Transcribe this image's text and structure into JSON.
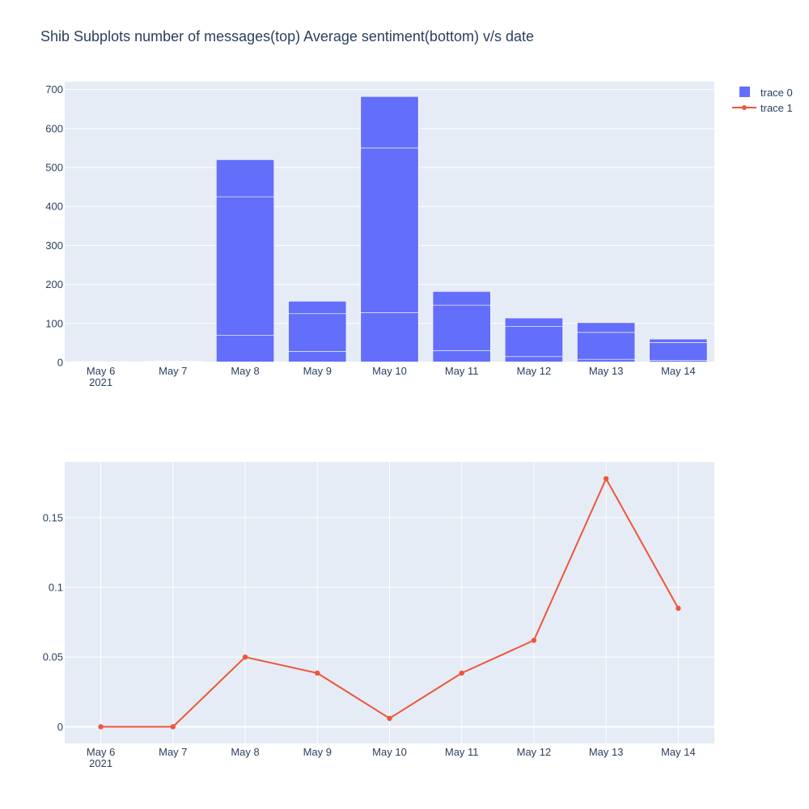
{
  "chart_data": {
    "type": "subplots",
    "title": "Shib Subplots number of messages(top) Average sentiment(bottom) v/s date",
    "year_label": "2021",
    "legend": [
      {
        "name": "trace 0",
        "symbol": "square",
        "color": "#636efa"
      },
      {
        "name": "trace 1",
        "symbol": "line-marker",
        "color": "#ef553b"
      }
    ],
    "legend_position": "top-right",
    "colors": {
      "plot_bg": "#e5ecf6",
      "grid": "#ffffff",
      "bar": "#636efa",
      "line": "#ef553b",
      "text": "#2a3f5f"
    },
    "subplots": [
      {
        "name": "number of messages",
        "type": "bar",
        "series_name": "trace 0",
        "categories": [
          "May 6",
          "May 7",
          "May 8",
          "May 9",
          "May 10",
          "May 11",
          "May 12",
          "May 13",
          "May 14"
        ],
        "stacked_segments": [
          [
            1,
            1
          ],
          [
            2,
            1
          ],
          [
            70,
            355,
            95
          ],
          [
            28,
            97,
            32
          ],
          [
            128,
            422,
            132
          ],
          [
            30,
            117,
            35
          ],
          [
            15,
            77,
            22
          ],
          [
            8,
            69,
            25
          ],
          [
            5,
            46,
            9
          ]
        ],
        "totals": [
          2,
          3,
          520,
          157,
          682,
          182,
          114,
          102,
          60
        ],
        "ylim": [
          0,
          720
        ],
        "yticks": [
          0,
          100,
          200,
          300,
          400,
          500,
          600,
          700
        ],
        "grid": true
      },
      {
        "name": "average sentiment",
        "type": "line",
        "series_name": "trace 1",
        "categories": [
          "May 6",
          "May 7",
          "May 8",
          "May 9",
          "May 10",
          "May 11",
          "May 12",
          "May 13",
          "May 14"
        ],
        "values": [
          0,
          0,
          0.05,
          0.0385,
          0.006,
          0.0385,
          0.062,
          0.178,
          0.085
        ],
        "ylim": [
          -0.012,
          0.19
        ],
        "yticks": [
          0,
          0.05,
          0.1,
          0.15
        ],
        "ytick_labels": [
          "0",
          "0.05",
          "0.1",
          "0.15"
        ],
        "grid": true
      }
    ]
  }
}
